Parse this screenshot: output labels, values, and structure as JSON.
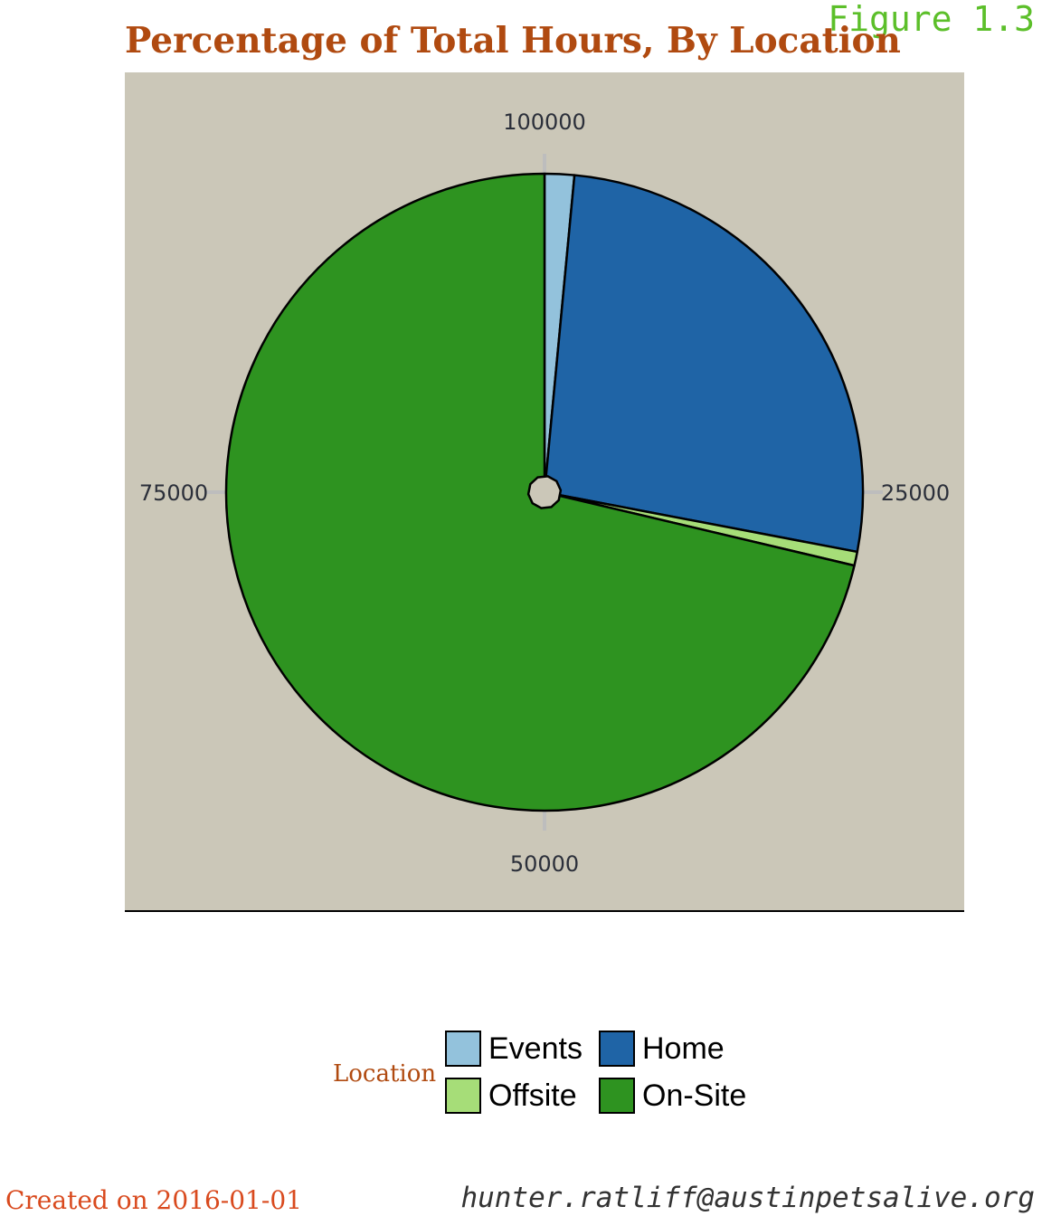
{
  "figure_label": "Figure 1.3",
  "footer": {
    "created": "Created on 2016-01-01",
    "email": "hunter.ratliff@austinpetsalive.org"
  },
  "colors": {
    "panel_background": "#cbc7b8",
    "grid": "#bdbdbd",
    "title": "#b04a10",
    "figure_label": "#5cbf2a"
  },
  "chart_data": {
    "type": "pie",
    "title": "Percentage of Total Hours, By Location",
    "theta_axis": {
      "min": 0,
      "max": 100000,
      "ticks": [
        {
          "value": 0,
          "label": "100000"
        },
        {
          "value": 25000,
          "label": "25000"
        },
        {
          "value": 50000,
          "label": "50000"
        },
        {
          "value": 75000,
          "label": "75000"
        }
      ]
    },
    "direction": "clockwise",
    "start": "top",
    "slices": [
      {
        "label": "Events",
        "value": 1500,
        "color": "#93c2dc"
      },
      {
        "label": "Home",
        "value": 26500,
        "color": "#1f64a6"
      },
      {
        "label": "Offsite",
        "value": 700,
        "color": "#a6dd78"
      },
      {
        "label": "On-Site",
        "value": 71300,
        "color": "#2e9320"
      }
    ],
    "legend": {
      "title": "Location",
      "position": "bottom",
      "items": [
        "Events",
        "Home",
        "Offsite",
        "On-Site"
      ]
    }
  }
}
